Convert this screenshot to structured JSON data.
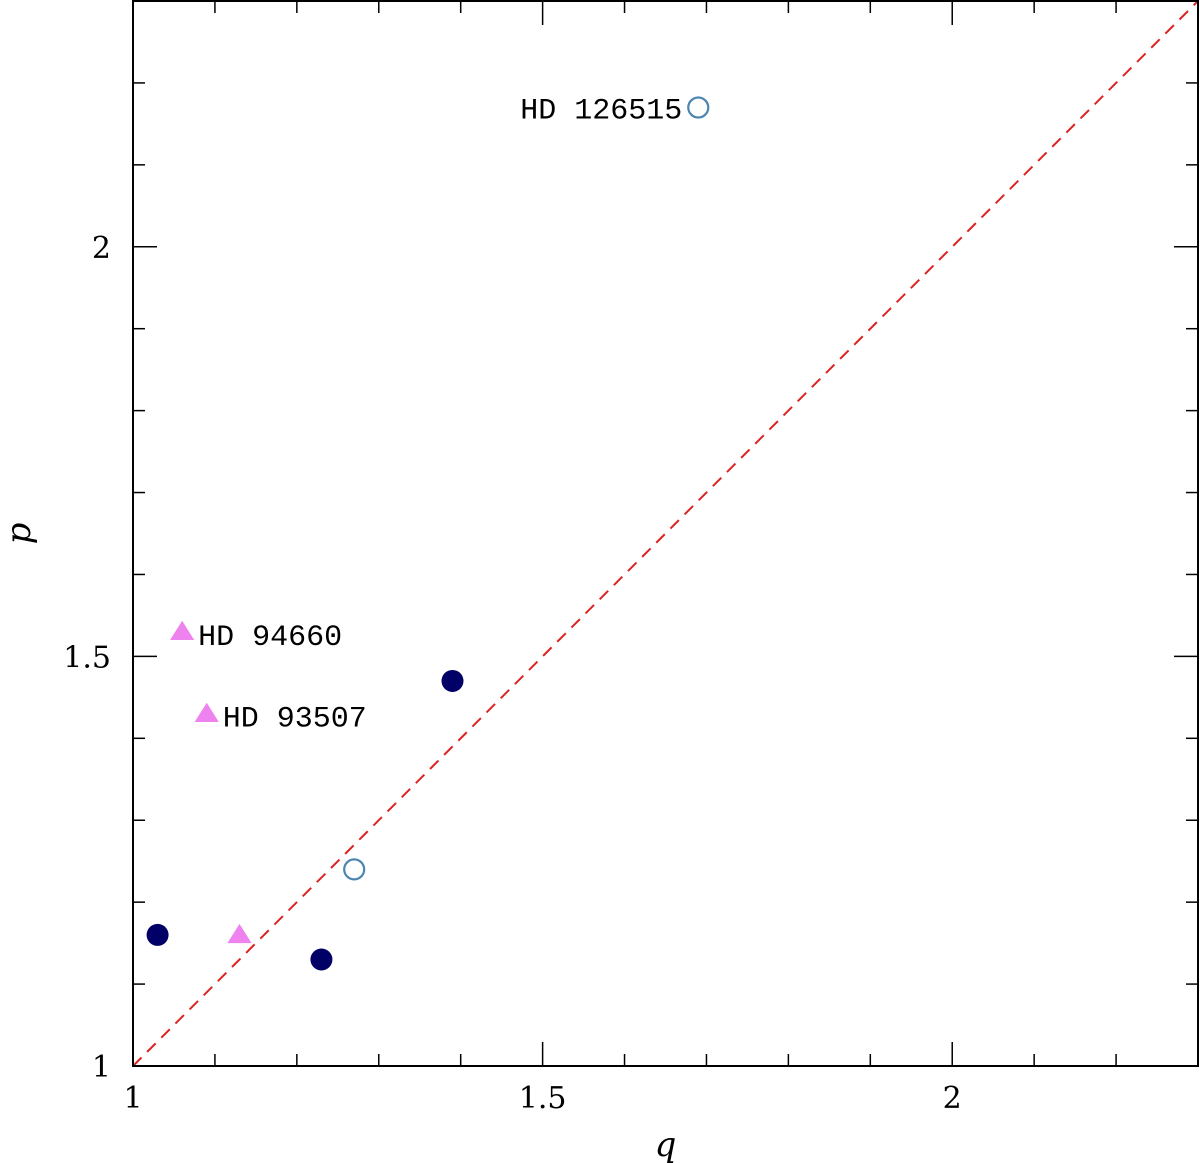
{
  "chart_data": {
    "type": "scatter",
    "title": "",
    "xlabel": "q",
    "ylabel": "p",
    "xlim": [
      1,
      2.3
    ],
    "ylim": [
      1,
      2.3
    ],
    "x_ticks": [
      {
        "value": 1,
        "label": "1"
      },
      {
        "value": 1.5,
        "label": "1.5"
      },
      {
        "value": 2,
        "label": "2"
      }
    ],
    "y_ticks": [
      {
        "value": 1,
        "label": "1"
      },
      {
        "value": 1.5,
        "label": "1.5"
      },
      {
        "value": 2,
        "label": "2"
      }
    ],
    "minor_tick_step": 0.1,
    "grid": false,
    "legend": "none",
    "reference_line": {
      "from": [
        1,
        1
      ],
      "to": [
        2.3,
        2.3
      ],
      "style": "dashed",
      "color": "#dd2222"
    },
    "series": [
      {
        "marker": "filled-circle",
        "color": "#000066",
        "points": [
          {
            "x": 1.03,
            "y": 1.16
          },
          {
            "x": 1.23,
            "y": 1.13
          },
          {
            "x": 1.39,
            "y": 1.47
          }
        ]
      },
      {
        "marker": "open-circle",
        "color": "#4a86b0",
        "points": [
          {
            "x": 1.27,
            "y": 1.24
          },
          {
            "x": 1.69,
            "y": 2.17,
            "label": "HD 126515"
          }
        ]
      },
      {
        "marker": "filled-triangle",
        "color": "#ee82ee",
        "points": [
          {
            "x": 1.06,
            "y": 1.53,
            "label": "HD 94660"
          },
          {
            "x": 1.09,
            "y": 1.43,
            "label": "HD 93507"
          },
          {
            "x": 1.13,
            "y": 1.16
          }
        ]
      }
    ]
  }
}
